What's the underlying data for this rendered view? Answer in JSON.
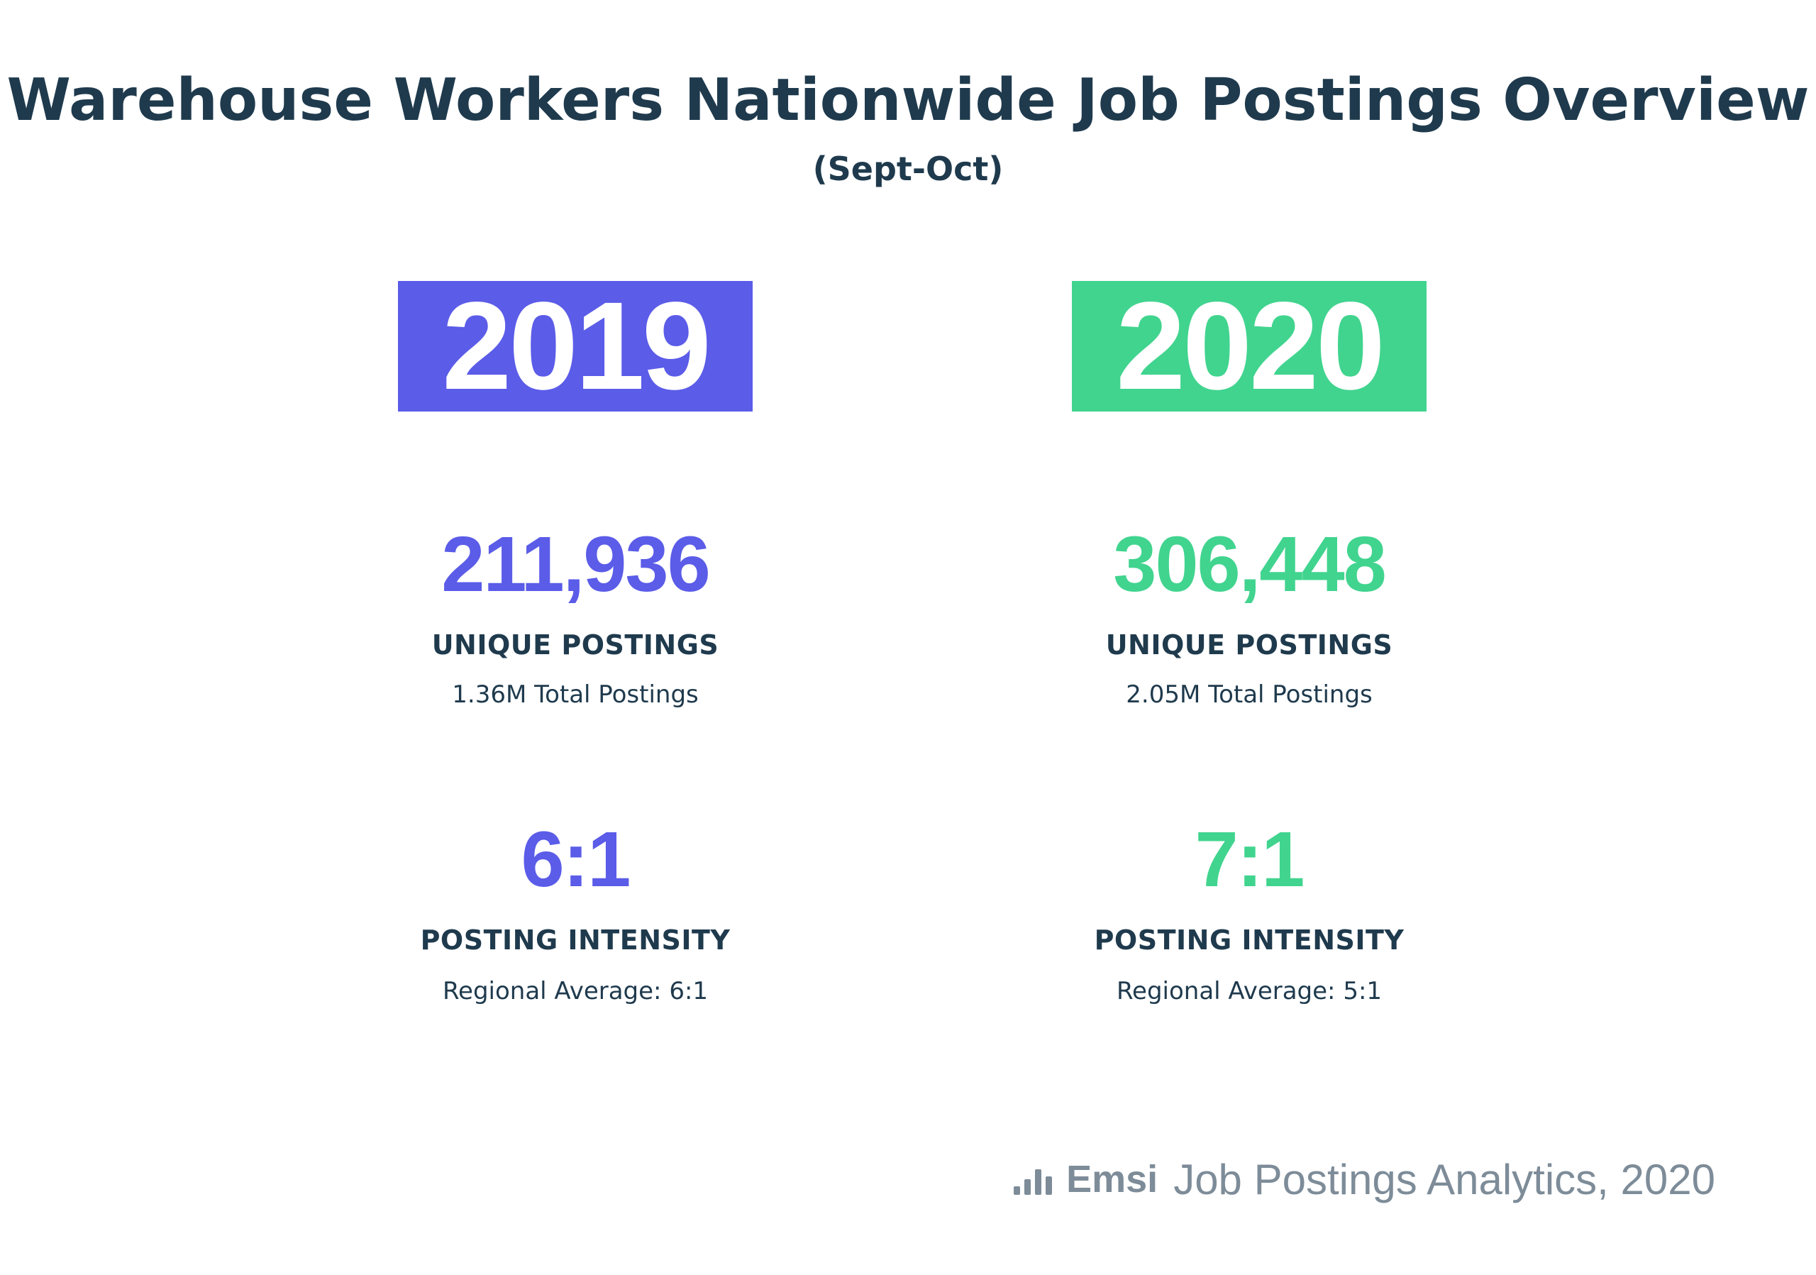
{
  "header": {
    "title": "Warehouse Workers Nationwide Job Postings Overview",
    "subtitle": "(Sept-Oct)"
  },
  "colors": {
    "year_2019": "#5b5ce8",
    "year_2020": "#41d48f",
    "text_dark": "#1f3a4d",
    "footer_gray": "#7d8c98"
  },
  "columns": [
    {
      "year": "2019",
      "unique_postings": "211,936",
      "unique_postings_label": "UNIQUE POSTINGS",
      "total_postings": "1.36M Total Postings",
      "posting_intensity": "6:1",
      "posting_intensity_label": "POSTING INTENSITY",
      "regional_average": "Regional Average: 6:1"
    },
    {
      "year": "2020",
      "unique_postings": "306,448",
      "unique_postings_label": "UNIQUE POSTINGS",
      "total_postings": "2.05M Total Postings",
      "posting_intensity": "7:1",
      "posting_intensity_label": "POSTING INTENSITY",
      "regional_average": "Regional Average: 5:1"
    }
  ],
  "footer": {
    "logo_icon": "bar-chart-icon",
    "brand": "Emsi",
    "source": "Job Postings Analytics, 2020"
  }
}
